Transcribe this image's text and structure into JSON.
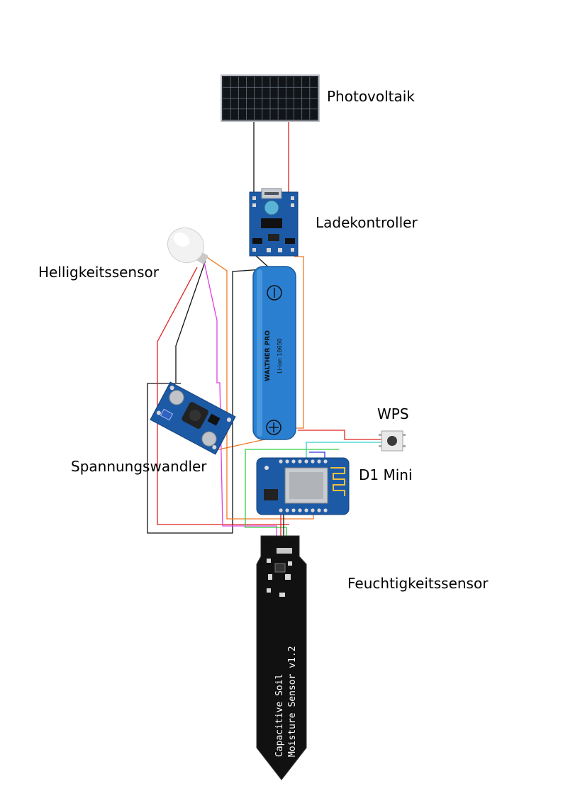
{
  "labels": {
    "photovoltaik": "Photovoltaik",
    "ladekontroller": "Ladekontroller",
    "helligkeitssensor": "Helligkeitssensor",
    "spannungswandler": "Spannungswandler",
    "wps": "WPS",
    "d1_mini": "D1 Mini",
    "feuchtigkeitssensor": "Feuchtigkeitssensor"
  },
  "battery": {
    "brand": "WALTHER PRO",
    "type": "Li-ion 18650"
  },
  "moisture_sensor": {
    "line1": "Capacitive Soil",
    "line2": "Moisture Sensor  v1.2"
  },
  "colors": {
    "wire_black": "#111111",
    "wire_red": "#e02020",
    "wire_orange": "#f07820",
    "wire_pink": "#e040e0",
    "wire_green": "#30d040",
    "wire_cyan": "#30d0d0",
    "wire_blue": "#3030e0",
    "pcb_blue": "#1d5aa6",
    "battery_blue": "#2a7fd0"
  }
}
